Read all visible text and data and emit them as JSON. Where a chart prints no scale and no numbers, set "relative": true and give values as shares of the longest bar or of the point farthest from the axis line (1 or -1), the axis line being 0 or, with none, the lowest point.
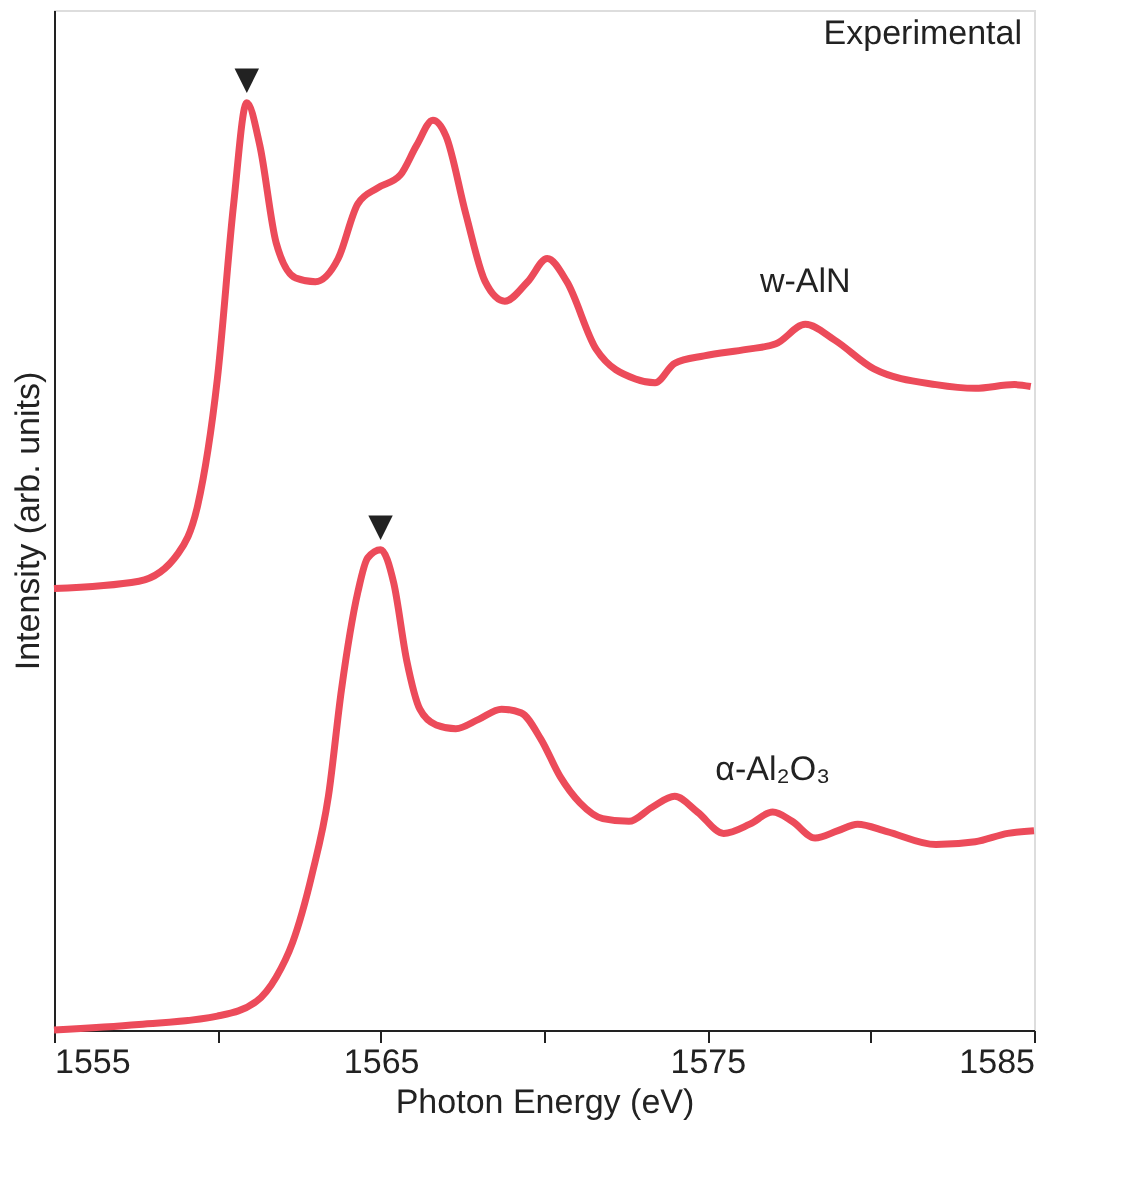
{
  "chart_data": {
    "type": "line",
    "relative": true,
    "xlabel": "Photon Energy (eV)",
    "ylabel": "Intensity (arb. units)",
    "xlim": [
      1555,
      1585
    ],
    "xticks": [
      1555,
      {
        "value": 1560,
        "label": null
      },
      1565,
      {
        "value": 1570,
        "label": null
      },
      1575,
      {
        "value": 1580,
        "label": null
      },
      1585
    ],
    "tick_labels": "x",
    "grid": false,
    "marker": "none",
    "line_style": "solid",
    "annotations": [
      "Experimental",
      {
        "text": "▼",
        "x": 1560.9,
        "y": 1.0
      },
      {
        "text": "▼",
        "x": 1565.0,
        "y": 0.518
      }
    ],
    "series": [
      {
        "name": "w-AlN",
        "color": "#ec4b5a",
        "x": [
          1555.0,
          1557.6,
          1558.8,
          1559.4,
          1560.0,
          1560.5,
          1560.9,
          1561.3,
          1561.8,
          1562.4,
          1563.0,
          1563.7,
          1564.3,
          1564.9,
          1565.6,
          1566.1,
          1566.6,
          1567.0,
          1567.6,
          1568.2,
          1568.8,
          1569.5,
          1570.1,
          1570.7,
          1571.6,
          1572.8,
          1573.4,
          1574.0,
          1574.9,
          1576.2,
          1577.1,
          1578.0,
          1578.9,
          1580.1,
          1582.0,
          1583.2,
          1584.4,
          1584.9
        ],
        "values": [
          0.476,
          0.484,
          0.514,
          0.566,
          0.702,
          0.891,
          1.0,
          0.954,
          0.849,
          0.811,
          0.807,
          0.832,
          0.891,
          0.908,
          0.922,
          0.954,
          0.981,
          0.964,
          0.881,
          0.807,
          0.786,
          0.807,
          0.832,
          0.807,
          0.734,
          0.702,
          0.698,
          0.719,
          0.727,
          0.734,
          0.74,
          0.761,
          0.744,
          0.713,
          0.696,
          0.692,
          0.696,
          0.694
        ]
      },
      {
        "name": "α-Al₂O₃",
        "color": "#ec4b5a",
        "x": [
          1555.0,
          1557.6,
          1560.0,
          1561.2,
          1561.8,
          1562.3,
          1562.9,
          1563.4,
          1563.8,
          1564.3,
          1564.6,
          1565.0,
          1565.4,
          1565.8,
          1566.2,
          1566.7,
          1567.3,
          1568.0,
          1568.7,
          1569.3,
          1569.9,
          1570.5,
          1571.1,
          1571.8,
          1572.6,
          1573.3,
          1574.0,
          1574.7,
          1575.5,
          1576.3,
          1577.0,
          1577.6,
          1578.3,
          1579.0,
          1579.6,
          1580.5,
          1582.0,
          1583.2,
          1584.2,
          1585.0
        ],
        "values": [
          0.0,
          0.006,
          0.015,
          0.031,
          0.057,
          0.094,
          0.168,
          0.252,
          0.367,
          0.472,
          0.509,
          0.518,
          0.482,
          0.398,
          0.346,
          0.329,
          0.325,
          0.335,
          0.346,
          0.342,
          0.314,
          0.273,
          0.245,
          0.228,
          0.225,
          0.24,
          0.252,
          0.235,
          0.212,
          0.222,
          0.235,
          0.225,
          0.207,
          0.215,
          0.222,
          0.214,
          0.2,
          0.203,
          0.212,
          0.215
        ]
      }
    ]
  }
}
